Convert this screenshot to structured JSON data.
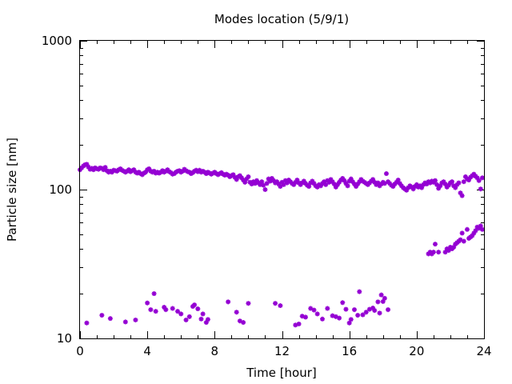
{
  "chart_data": {
    "type": "scatter",
    "title": "Modes location (5/9/1)",
    "xlabel": "Time [hour]",
    "ylabel": "Particle size [nm]",
    "xlim": [
      0,
      24
    ],
    "ylim": [
      10,
      1000
    ],
    "y_scale": "log",
    "grid": false,
    "legend": "none",
    "marker": "asterisk",
    "color": "#9400d3",
    "x_ticks": [
      0,
      4,
      8,
      12,
      16,
      20,
      24
    ],
    "x_tick_labels": [
      "0",
      "4",
      "8",
      "12",
      "16",
      "20",
      "24"
    ],
    "y_ticks": [
      10,
      100,
      1000
    ],
    "y_tick_labels": [
      "10",
      "100",
      "1000"
    ],
    "series": [
      {
        "values": [
          [
            0.0,
            136
          ],
          [
            0.1,
            140
          ],
          [
            0.2,
            144
          ],
          [
            0.3,
            147
          ],
          [
            0.4,
            148
          ],
          [
            0.5,
            142
          ],
          [
            0.6,
            137
          ],
          [
            0.7,
            139
          ],
          [
            0.8,
            136
          ],
          [
            0.9,
            140
          ],
          [
            1.0,
            138
          ],
          [
            1.1,
            137
          ],
          [
            1.2,
            140
          ],
          [
            1.3,
            139
          ],
          [
            1.4,
            136
          ],
          [
            1.5,
            141
          ],
          [
            1.6,
            134
          ],
          [
            1.7,
            131
          ],
          [
            1.8,
            133
          ],
          [
            1.9,
            131
          ],
          [
            2.0,
            135
          ],
          [
            2.1,
            134
          ],
          [
            2.2,
            133
          ],
          [
            2.3,
            136
          ],
          [
            2.4,
            138
          ],
          [
            2.5,
            135
          ],
          [
            2.6,
            133
          ],
          [
            2.7,
            131
          ],
          [
            2.8,
            133
          ],
          [
            2.9,
            136
          ],
          [
            3.0,
            132
          ],
          [
            3.1,
            134
          ],
          [
            3.2,
            136
          ],
          [
            3.3,
            131
          ],
          [
            3.4,
            129
          ],
          [
            3.5,
            131
          ],
          [
            3.6,
            128
          ],
          [
            3.7,
            126
          ],
          [
            3.8,
            129
          ],
          [
            3.9,
            131
          ],
          [
            4.0,
            136
          ],
          [
            4.1,
            138
          ],
          [
            4.2,
            133
          ],
          [
            4.3,
            131
          ],
          [
            4.4,
            133
          ],
          [
            4.5,
            129
          ],
          [
            4.6,
            131
          ],
          [
            4.7,
            129
          ],
          [
            4.8,
            131
          ],
          [
            4.9,
            134
          ],
          [
            5.0,
            131
          ],
          [
            5.1,
            133
          ],
          [
            5.2,
            136
          ],
          [
            5.3,
            132
          ],
          [
            5.4,
            130
          ],
          [
            5.5,
            127
          ],
          [
            5.6,
            128
          ],
          [
            5.7,
            131
          ],
          [
            5.8,
            133
          ],
          [
            5.9,
            134
          ],
          [
            6.0,
            131
          ],
          [
            6.1,
            133
          ],
          [
            6.2,
            137
          ],
          [
            6.3,
            134
          ],
          [
            6.4,
            132
          ],
          [
            6.5,
            131
          ],
          [
            6.6,
            128
          ],
          [
            6.7,
            130
          ],
          [
            6.8,
            133
          ],
          [
            6.9,
            135
          ],
          [
            7.0,
            132
          ],
          [
            7.1,
            135
          ],
          [
            7.2,
            131
          ],
          [
            7.3,
            133
          ],
          [
            7.4,
            131
          ],
          [
            7.5,
            128
          ],
          [
            7.6,
            131
          ],
          [
            7.7,
            129
          ],
          [
            7.8,
            127
          ],
          [
            7.9,
            129
          ],
          [
            8.0,
            131
          ],
          [
            8.1,
            128
          ],
          [
            8.2,
            126
          ],
          [
            8.3,
            128
          ],
          [
            8.4,
            130
          ],
          [
            8.5,
            127
          ],
          [
            8.6,
            125
          ],
          [
            8.7,
            127
          ],
          [
            8.8,
            125
          ],
          [
            8.9,
            122
          ],
          [
            9.0,
            124
          ],
          [
            9.1,
            126
          ],
          [
            9.2,
            121
          ],
          [
            9.3,
            117
          ],
          [
            9.4,
            122
          ],
          [
            9.5,
            124
          ],
          [
            9.6,
            120
          ],
          [
            9.7,
            116
          ],
          [
            9.8,
            112
          ],
          [
            9.9,
            118
          ],
          [
            10.0,
            122
          ],
          [
            10.1,
            112
          ],
          [
            10.2,
            109
          ],
          [
            10.3,
            113
          ],
          [
            10.4,
            110
          ],
          [
            10.5,
            115
          ],
          [
            10.6,
            111
          ],
          [
            10.7,
            108
          ],
          [
            10.8,
            113
          ],
          [
            10.9,
            107
          ],
          [
            11.0,
            100
          ],
          [
            11.1,
            110
          ],
          [
            11.2,
            118
          ],
          [
            11.3,
            114
          ],
          [
            11.4,
            119
          ],
          [
            11.5,
            115
          ],
          [
            11.6,
            111
          ],
          [
            11.7,
            113
          ],
          [
            11.8,
            109
          ],
          [
            11.9,
            105
          ],
          [
            12.0,
            112
          ],
          [
            12.1,
            108
          ],
          [
            12.2,
            115
          ],
          [
            12.3,
            111
          ],
          [
            12.4,
            116
          ],
          [
            12.5,
            113
          ],
          [
            12.6,
            110
          ],
          [
            12.7,
            108
          ],
          [
            12.8,
            112
          ],
          [
            12.9,
            116
          ],
          [
            13.0,
            111
          ],
          [
            13.1,
            108
          ],
          [
            13.2,
            111
          ],
          [
            13.3,
            114
          ],
          [
            13.4,
            110
          ],
          [
            13.5,
            107
          ],
          [
            13.6,
            105
          ],
          [
            13.7,
            111
          ],
          [
            13.8,
            114
          ],
          [
            13.9,
            110
          ],
          [
            14.0,
            106
          ],
          [
            14.1,
            104
          ],
          [
            14.2,
            108
          ],
          [
            14.3,
            106
          ],
          [
            14.4,
            110
          ],
          [
            14.5,
            113
          ],
          [
            14.6,
            108
          ],
          [
            14.7,
            115
          ],
          [
            14.8,
            112
          ],
          [
            14.9,
            117
          ],
          [
            15.0,
            113
          ],
          [
            15.1,
            109
          ],
          [
            15.2,
            104
          ],
          [
            15.3,
            108
          ],
          [
            15.4,
            112
          ],
          [
            15.5,
            116
          ],
          [
            15.6,
            119
          ],
          [
            15.7,
            115
          ],
          [
            15.8,
            110
          ],
          [
            15.9,
            106
          ],
          [
            16.0,
            114
          ],
          [
            16.1,
            118
          ],
          [
            16.2,
            113
          ],
          [
            16.3,
            109
          ],
          [
            16.4,
            105
          ],
          [
            16.5,
            109
          ],
          [
            16.6,
            113
          ],
          [
            16.7,
            117
          ],
          [
            16.8,
            114
          ],
          [
            16.9,
            112
          ],
          [
            17.0,
            110
          ],
          [
            17.1,
            108
          ],
          [
            17.2,
            111
          ],
          [
            17.3,
            114
          ],
          [
            17.4,
            117
          ],
          [
            17.5,
            112
          ],
          [
            17.6,
            108
          ],
          [
            17.7,
            111
          ],
          [
            17.8,
            106
          ],
          [
            17.9,
            109
          ],
          [
            18.0,
            112
          ],
          [
            18.1,
            110
          ],
          [
            18.2,
            128
          ],
          [
            18.3,
            113
          ],
          [
            18.4,
            110
          ],
          [
            18.5,
            107
          ],
          [
            18.6,
            105
          ],
          [
            18.7,
            109
          ],
          [
            18.8,
            112
          ],
          [
            18.9,
            116
          ],
          [
            19.0,
            110
          ],
          [
            19.1,
            106
          ],
          [
            19.2,
            103
          ],
          [
            19.3,
            101
          ],
          [
            19.4,
            99
          ],
          [
            19.5,
            103
          ],
          [
            19.6,
            106
          ],
          [
            19.7,
            104
          ],
          [
            19.8,
            101
          ],
          [
            19.9,
            105
          ],
          [
            20.0,
            108
          ],
          [
            20.1,
            104
          ],
          [
            20.2,
            106
          ],
          [
            20.3,
            103
          ],
          [
            20.4,
            108
          ],
          [
            20.5,
            111
          ],
          [
            20.6,
            109
          ],
          [
            20.7,
            113
          ],
          [
            20.8,
            111
          ],
          [
            20.9,
            114
          ],
          [
            21.0,
            112
          ],
          [
            21.1,
            115
          ],
          [
            21.2,
            108
          ],
          [
            21.3,
            102
          ],
          [
            21.4,
            106
          ],
          [
            21.5,
            111
          ],
          [
            21.6,
            113
          ],
          [
            21.7,
            109
          ],
          [
            21.8,
            104
          ],
          [
            21.9,
            107
          ],
          [
            22.0,
            111
          ],
          [
            22.1,
            113
          ],
          [
            22.2,
            106
          ],
          [
            22.3,
            103
          ],
          [
            22.4,
            108
          ],
          [
            22.5,
            111
          ],
          [
            22.6,
            95
          ],
          [
            22.7,
            91
          ],
          [
            22.8,
            113
          ],
          [
            22.9,
            122
          ],
          [
            23.0,
            118
          ],
          [
            23.1,
            116
          ],
          [
            23.2,
            121
          ],
          [
            23.3,
            124
          ],
          [
            23.4,
            127
          ],
          [
            23.5,
            123
          ],
          [
            23.6,
            120
          ],
          [
            23.7,
            115
          ],
          [
            23.8,
            101
          ],
          [
            23.9,
            120
          ],
          [
            20.7,
            37
          ],
          [
            20.8,
            38
          ],
          [
            20.9,
            37
          ],
          [
            21.0,
            38
          ],
          [
            21.1,
            43
          ],
          [
            21.3,
            38
          ],
          [
            21.7,
            38
          ],
          [
            21.8,
            40
          ],
          [
            21.9,
            39
          ],
          [
            22.0,
            41
          ],
          [
            22.1,
            40
          ],
          [
            22.2,
            41
          ],
          [
            22.3,
            43
          ],
          [
            22.4,
            44
          ],
          [
            22.5,
            45
          ],
          [
            22.6,
            46
          ],
          [
            22.7,
            51
          ],
          [
            22.8,
            45
          ],
          [
            23.0,
            54
          ],
          [
            23.1,
            47
          ],
          [
            23.2,
            48
          ],
          [
            23.3,
            49
          ],
          [
            23.4,
            51
          ],
          [
            23.5,
            53
          ],
          [
            23.6,
            56
          ],
          [
            23.7,
            55
          ],
          [
            23.8,
            57
          ],
          [
            23.9,
            54
          ],
          [
            0.4,
            12.7
          ],
          [
            1.3,
            14.3
          ],
          [
            1.8,
            13.6
          ],
          [
            2.7,
            12.9
          ],
          [
            3.3,
            13.3
          ],
          [
            4.0,
            17.3
          ],
          [
            4.2,
            15.6
          ],
          [
            4.4,
            20.0
          ],
          [
            4.5,
            15.2
          ],
          [
            5.0,
            16.2
          ],
          [
            5.1,
            15.6
          ],
          [
            5.5,
            15.9
          ],
          [
            5.8,
            15.2
          ],
          [
            6.0,
            14.6
          ],
          [
            6.3,
            13.3
          ],
          [
            6.5,
            14.0
          ],
          [
            6.7,
            16.4
          ],
          [
            6.8,
            16.8
          ],
          [
            7.0,
            15.8
          ],
          [
            7.2,
            13.5
          ],
          [
            7.3,
            14.6
          ],
          [
            7.5,
            12.8
          ],
          [
            7.6,
            13.4
          ],
          [
            8.8,
            17.6
          ],
          [
            9.3,
            15.0
          ],
          [
            9.5,
            13.1
          ],
          [
            9.7,
            12.8
          ],
          [
            10.0,
            17.2
          ],
          [
            11.6,
            17.2
          ],
          [
            11.9,
            16.6
          ],
          [
            12.8,
            12.3
          ],
          [
            13.0,
            12.5
          ],
          [
            13.2,
            14.1
          ],
          [
            13.4,
            13.9
          ],
          [
            13.7,
            15.9
          ],
          [
            13.9,
            15.5
          ],
          [
            14.1,
            14.6
          ],
          [
            14.4,
            13.5
          ],
          [
            14.7,
            15.9
          ],
          [
            15.0,
            14.2
          ],
          [
            15.2,
            14.0
          ],
          [
            15.4,
            13.7
          ],
          [
            15.6,
            17.4
          ],
          [
            15.8,
            15.7
          ],
          [
            16.0,
            12.7
          ],
          [
            16.1,
            13.4
          ],
          [
            16.3,
            15.6
          ],
          [
            16.5,
            14.3
          ],
          [
            16.6,
            20.6
          ],
          [
            16.8,
            14.4
          ],
          [
            17.0,
            15.0
          ],
          [
            17.2,
            15.7
          ],
          [
            17.4,
            16.0
          ],
          [
            17.5,
            15.4
          ],
          [
            17.7,
            17.6
          ],
          [
            17.8,
            14.8
          ],
          [
            17.9,
            19.6
          ],
          [
            18.0,
            17.7
          ],
          [
            18.1,
            18.6
          ],
          [
            18.3,
            15.6
          ]
        ]
      }
    ]
  }
}
